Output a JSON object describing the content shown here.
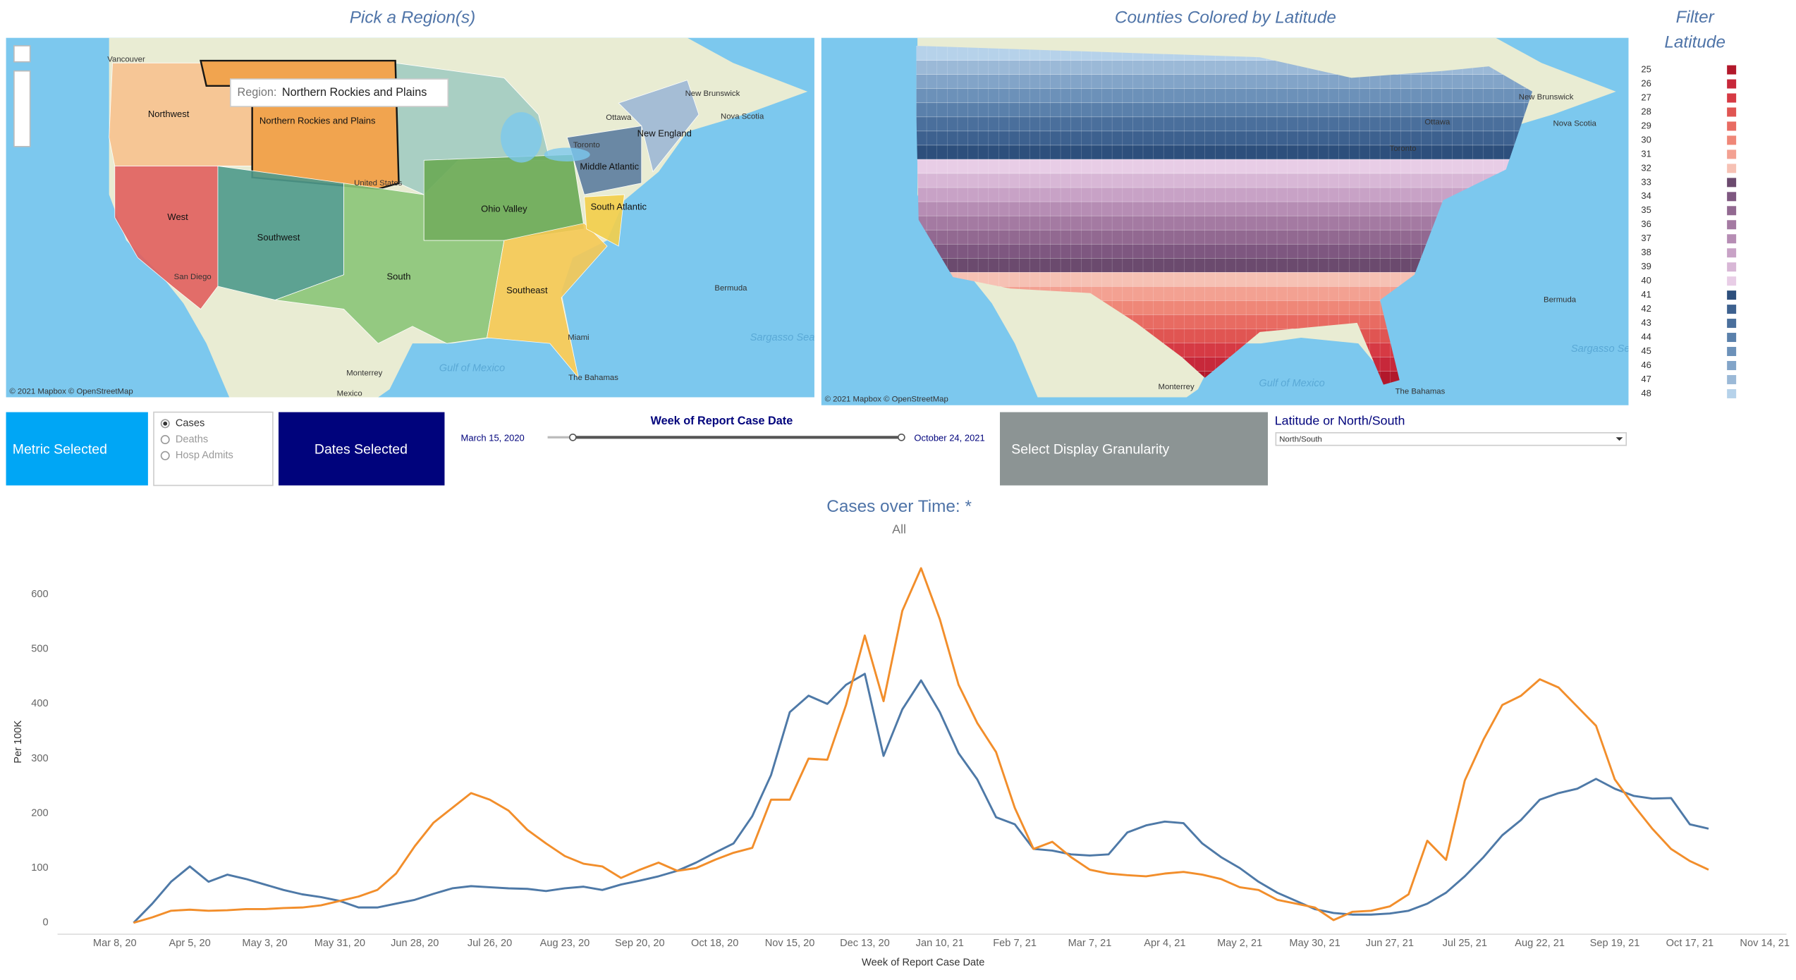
{
  "left_map": {
    "title": "Pick a Region(s)",
    "regions": [
      {
        "name": "Northwest",
        "color": "#f8c28f"
      },
      {
        "name": "Northern Rockies and Plains",
        "color": "#f29d41"
      },
      {
        "name": "West",
        "color": "#e2605e"
      },
      {
        "name": "Southwest",
        "color": "#4e9a8c"
      },
      {
        "name": "South",
        "color": "#8bc679"
      },
      {
        "name": "Ohio Valley",
        "color": "#6aaa55"
      },
      {
        "name": "Southeast",
        "color": "#f6c954"
      },
      {
        "name": "Middle Atlantic",
        "color": "#5d7ea0"
      },
      {
        "name": "New England",
        "color": "#9eb9d6"
      },
      {
        "name": "South Atlantic",
        "color": "#f4cf4a"
      }
    ],
    "places": [
      "Vancouver",
      "Ottawa",
      "Toronto",
      "New Brunswick",
      "Nova Scotia",
      "United States",
      "San Diego",
      "Monterrey",
      "Mexico",
      "Gulf of Mexico",
      "Sargasso Sea",
      "Bermuda",
      "Miami",
      "The Bahamas"
    ],
    "tooltip": {
      "key": "Region:",
      "value": "Northern Rockies and Plains"
    },
    "attribution": "© 2021 Mapbox © OpenStreetMap"
  },
  "right_map": {
    "title": "Counties Colored by Latitude",
    "places": [
      "New Brunswick",
      "Nova Scotia",
      "Ottawa",
      "Toronto",
      "Monterrey",
      "Gulf of Mexico",
      "Sargasso Sea",
      "Bermuda",
      "The Bahamas"
    ],
    "attribution": "© 2021 Mapbox © OpenStreetMap"
  },
  "latitude_filter": {
    "title": "Filter Latitude",
    "latitudes": [
      25,
      26,
      27,
      28,
      29,
      30,
      31,
      32,
      33,
      34,
      35,
      36,
      37,
      38,
      39,
      40,
      41,
      42,
      43,
      44,
      45,
      46,
      47,
      48
    ],
    "colors": [
      "#b2182b",
      "#c7283a",
      "#d63a44",
      "#e05552",
      "#e86b62",
      "#ef8778",
      "#f3a192",
      "#f6c1b4",
      "#6b4a6e",
      "#7e5780",
      "#926991",
      "#a47aa2",
      "#b68db4",
      "#c8a2c6",
      "#d8b7d6",
      "#e8cde6",
      "#2d4f7c",
      "#3d618f",
      "#4a6f9c",
      "#5a80ab",
      "#6c91b9",
      "#82a4c8",
      "#9bb9d7",
      "#b6d2ea"
    ]
  },
  "controls": {
    "metric_title": "Metric Selected",
    "metric_options": [
      "Cases",
      "Deaths",
      "Hosp Admits"
    ],
    "metric_selected": "Cases",
    "dates_title": "Dates Selected",
    "slider_title": "Week of Report Case Date",
    "slider_start": "March 15, 2020",
    "slider_end": "October 24, 2021",
    "granularity_title": "Select Display Granularity",
    "dropdown_title": "Latitude or North/South",
    "dropdown_value": "North/South"
  },
  "chart_data": {
    "type": "line",
    "title": "Cases over Time: *",
    "subtitle": "All",
    "x_label": "Week of Report Case Date",
    "y_label": "Per 100K",
    "categories": [
      "Mar 8, 20",
      null,
      null,
      null,
      "Apr 5, 20",
      null,
      null,
      null,
      "May 3, 20",
      null,
      null,
      null,
      "May 31, 20",
      null,
      null,
      null,
      "Jun 28, 20",
      null,
      null,
      null,
      "Jul 26, 20",
      null,
      null,
      null,
      "Aug 23, 20",
      null,
      null,
      null,
      "Sep 20, 20",
      null,
      null,
      null,
      "Oct 18, 20",
      null,
      null,
      null,
      "Nov 15, 20",
      null,
      null,
      null,
      "Dec 13, 20",
      null,
      null,
      null,
      "Jan 10, 21",
      null,
      null,
      null,
      "Feb 7, 21",
      null,
      null,
      null,
      "Mar 7, 21",
      null,
      null,
      null,
      "Apr 4, 21",
      null,
      null,
      null,
      "May 2, 21",
      null,
      null,
      null,
      "May 30, 21",
      null,
      null,
      null,
      "Jun 27, 21",
      null,
      null,
      null,
      "Jul 25, 21",
      null,
      null,
      null,
      "Aug 22, 21",
      null,
      null,
      null,
      "Sep 19, 21",
      null,
      null,
      null,
      "Oct 17, 21",
      null,
      null,
      null,
      "Nov 14, 21"
    ],
    "series": [
      {
        "color": "#4e79a7",
        "values": [
          null,
          0,
          35,
          75,
          103,
          75,
          88,
          80,
          70,
          60,
          52,
          47,
          40,
          28,
          28,
          35,
          42,
          53,
          63,
          67,
          65,
          63,
          62,
          58,
          63,
          66,
          60,
          70,
          77,
          85,
          95,
          110,
          128,
          145,
          195,
          270,
          385,
          415,
          400,
          435,
          455,
          305,
          390,
          443,
          385,
          310,
          262,
          193,
          180,
          135,
          132,
          125,
          123,
          125,
          165,
          178,
          185,
          182,
          145,
          120,
          100,
          75,
          55,
          40,
          25,
          18,
          15,
          15,
          17,
          22,
          35,
          55,
          85,
          120,
          160,
          188,
          225,
          237,
          245,
          263,
          245,
          232,
          227,
          228,
          180,
          172,
          null,
          null,
          null
        ]
      },
      {
        "color": "#f28e2b",
        "values": [
          null,
          0,
          10,
          22,
          24,
          22,
          23,
          25,
          25,
          27,
          28,
          32,
          40,
          48,
          60,
          90,
          140,
          183,
          210,
          237,
          225,
          205,
          170,
          145,
          122,
          108,
          103,
          82,
          97,
          110,
          95,
          100,
          115,
          128,
          137,
          225,
          225,
          300,
          298,
          398,
          525,
          405,
          570,
          648,
          555,
          435,
          365,
          312,
          210,
          135,
          148,
          120,
          97,
          90,
          87,
          85,
          90,
          93,
          88,
          80,
          65,
          60,
          42,
          35,
          28,
          5,
          20,
          22,
          30,
          52,
          150,
          115,
          260,
          335,
          398,
          415,
          445,
          430,
          395,
          360,
          262,
          215,
          172,
          135,
          113,
          97,
          null,
          null,
          null
        ]
      }
    ],
    "ylim": [
      -20,
      680
    ],
    "yticks": [
      0,
      100,
      200,
      300,
      400,
      500,
      600
    ],
    "grid": false
  }
}
